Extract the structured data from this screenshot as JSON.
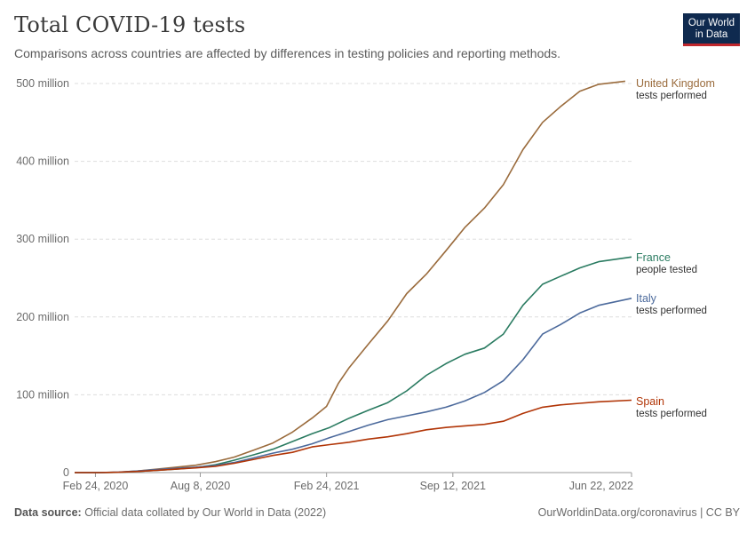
{
  "header": {
    "title": "Total COVID-19 tests",
    "subtitle": "Comparisons across countries are affected by differences in testing policies and reporting methods."
  },
  "logo": {
    "line1": "Our World",
    "line2": "in Data",
    "bg_color": "#0f2a4f",
    "accent_color": "#c0272d"
  },
  "footer": {
    "source_label": "Data source:",
    "source_text": "Official data collated by Our World in Data (2022)",
    "right_text": "OurWorldinData.org/coronavirus | CC BY"
  },
  "chart_data": {
    "type": "line",
    "title": "Total COVID-19 tests",
    "xlabel": "",
    "ylabel": "",
    "x_range": [
      "2020-01-22",
      "2022-06-22"
    ],
    "ylim": [
      0,
      500000000
    ],
    "grid": "horizontal-dashed",
    "legend": "right-end-labels",
    "x_ticks": [
      {
        "date": "2020-02-24",
        "label": "Feb 24, 2020"
      },
      {
        "date": "2020-08-08",
        "label": "Aug 8, 2020"
      },
      {
        "date": "2021-02-24",
        "label": "Feb 24, 2021"
      },
      {
        "date": "2021-09-12",
        "label": "Sep 12, 2021"
      },
      {
        "date": "2022-06-22",
        "label": "Jun 22, 2022"
      }
    ],
    "y_ticks": [
      {
        "value": 0,
        "label": "0"
      },
      {
        "value": 100000000,
        "label": "100 million"
      },
      {
        "value": 200000000,
        "label": "200 million"
      },
      {
        "value": 300000000,
        "label": "300 million"
      },
      {
        "value": 400000000,
        "label": "400 million"
      },
      {
        "value": 500000000,
        "label": "500 million"
      }
    ],
    "series": [
      {
        "name": "United Kingdom",
        "sublabel": "tests performed",
        "color": "#9a6b3c",
        "points": [
          [
            "2020-01-22",
            0
          ],
          [
            "2020-03-01",
            100000
          ],
          [
            "2020-04-01",
            500000
          ],
          [
            "2020-05-01",
            2000000
          ],
          [
            "2020-06-01",
            4500000
          ],
          [
            "2020-07-01",
            7000000
          ],
          [
            "2020-08-01",
            9500000
          ],
          [
            "2020-09-01",
            14000000
          ],
          [
            "2020-10-01",
            20000000
          ],
          [
            "2020-11-01",
            29000000
          ],
          [
            "2020-12-01",
            38000000
          ],
          [
            "2021-01-01",
            52000000
          ],
          [
            "2021-02-01",
            70000000
          ],
          [
            "2021-02-24",
            85000000
          ],
          [
            "2021-03-15",
            115000000
          ],
          [
            "2021-04-01",
            135000000
          ],
          [
            "2021-05-01",
            165000000
          ],
          [
            "2021-06-01",
            195000000
          ],
          [
            "2021-07-01",
            230000000
          ],
          [
            "2021-08-01",
            255000000
          ],
          [
            "2021-09-01",
            285000000
          ],
          [
            "2021-10-01",
            315000000
          ],
          [
            "2021-11-01",
            340000000
          ],
          [
            "2021-12-01",
            370000000
          ],
          [
            "2022-01-01",
            415000000
          ],
          [
            "2022-02-01",
            450000000
          ],
          [
            "2022-03-01",
            470000000
          ],
          [
            "2022-04-01",
            490000000
          ],
          [
            "2022-05-01",
            499000000
          ],
          [
            "2022-06-12",
            503000000
          ]
        ]
      },
      {
        "name": "France",
        "sublabel": "people tested",
        "color": "#2a7b61",
        "points": [
          [
            "2020-01-22",
            0
          ],
          [
            "2020-03-01",
            50000
          ],
          [
            "2020-04-01",
            300000
          ],
          [
            "2020-05-01",
            1500000
          ],
          [
            "2020-06-01",
            3000000
          ],
          [
            "2020-07-01",
            4500000
          ],
          [
            "2020-08-01",
            6500000
          ],
          [
            "2020-09-01",
            10000000
          ],
          [
            "2020-10-01",
            16000000
          ],
          [
            "2020-11-01",
            23000000
          ],
          [
            "2020-12-01",
            30000000
          ],
          [
            "2021-01-01",
            40000000
          ],
          [
            "2021-02-01",
            50000000
          ],
          [
            "2021-03-01",
            58000000
          ],
          [
            "2021-04-01",
            70000000
          ],
          [
            "2021-05-01",
            80000000
          ],
          [
            "2021-06-01",
            90000000
          ],
          [
            "2021-07-01",
            105000000
          ],
          [
            "2021-08-01",
            125000000
          ],
          [
            "2021-09-01",
            140000000
          ],
          [
            "2021-10-01",
            152000000
          ],
          [
            "2021-11-01",
            160000000
          ],
          [
            "2021-12-01",
            178000000
          ],
          [
            "2022-01-01",
            215000000
          ],
          [
            "2022-02-01",
            242000000
          ],
          [
            "2022-03-01",
            252000000
          ],
          [
            "2022-04-01",
            263000000
          ],
          [
            "2022-05-01",
            271000000
          ],
          [
            "2022-06-22",
            277000000
          ]
        ]
      },
      {
        "name": "Italy",
        "sublabel": "tests performed",
        "color": "#4c6a9c",
        "points": [
          [
            "2020-01-22",
            0
          ],
          [
            "2020-03-01",
            50000
          ],
          [
            "2020-04-01",
            700000
          ],
          [
            "2020-05-01",
            2000000
          ],
          [
            "2020-06-01",
            4000000
          ],
          [
            "2020-07-01",
            5500000
          ],
          [
            "2020-08-01",
            7000000
          ],
          [
            "2020-09-01",
            9000000
          ],
          [
            "2020-10-01",
            13000000
          ],
          [
            "2020-11-01",
            19000000
          ],
          [
            "2020-12-01",
            25000000
          ],
          [
            "2021-01-01",
            30000000
          ],
          [
            "2021-02-01",
            37000000
          ],
          [
            "2021-03-01",
            45000000
          ],
          [
            "2021-04-01",
            53000000
          ],
          [
            "2021-05-01",
            61000000
          ],
          [
            "2021-06-01",
            68000000
          ],
          [
            "2021-07-01",
            73000000
          ],
          [
            "2021-08-01",
            78000000
          ],
          [
            "2021-09-01",
            84000000
          ],
          [
            "2021-10-01",
            92000000
          ],
          [
            "2021-11-01",
            103000000
          ],
          [
            "2021-12-01",
            118000000
          ],
          [
            "2022-01-01",
            145000000
          ],
          [
            "2022-02-01",
            178000000
          ],
          [
            "2022-03-01",
            190000000
          ],
          [
            "2022-04-01",
            205000000
          ],
          [
            "2022-05-01",
            215000000
          ],
          [
            "2022-06-22",
            224000000
          ]
        ]
      },
      {
        "name": "Spain",
        "sublabel": "tests performed",
        "color": "#b13507",
        "points": [
          [
            "2020-01-22",
            0
          ],
          [
            "2020-03-01",
            30000
          ],
          [
            "2020-04-01",
            400000
          ],
          [
            "2020-05-01",
            1500000
          ],
          [
            "2020-06-01",
            3000000
          ],
          [
            "2020-07-01",
            4500000
          ],
          [
            "2020-08-01",
            6000000
          ],
          [
            "2020-09-01",
            8000000
          ],
          [
            "2020-10-01",
            12000000
          ],
          [
            "2020-11-01",
            17000000
          ],
          [
            "2020-12-01",
            22000000
          ],
          [
            "2021-01-01",
            26000000
          ],
          [
            "2021-02-01",
            33000000
          ],
          [
            "2021-03-01",
            36000000
          ],
          [
            "2021-04-01",
            39000000
          ],
          [
            "2021-05-01",
            43000000
          ],
          [
            "2021-06-01",
            46000000
          ],
          [
            "2021-07-01",
            50000000
          ],
          [
            "2021-08-01",
            55000000
          ],
          [
            "2021-09-01",
            58000000
          ],
          [
            "2021-10-01",
            60000000
          ],
          [
            "2021-11-01",
            62000000
          ],
          [
            "2021-12-01",
            66000000
          ],
          [
            "2022-01-01",
            76000000
          ],
          [
            "2022-02-01",
            84000000
          ],
          [
            "2022-03-01",
            87000000
          ],
          [
            "2022-04-01",
            89000000
          ],
          [
            "2022-05-01",
            91000000
          ],
          [
            "2022-06-22",
            93000000
          ]
        ]
      }
    ]
  }
}
